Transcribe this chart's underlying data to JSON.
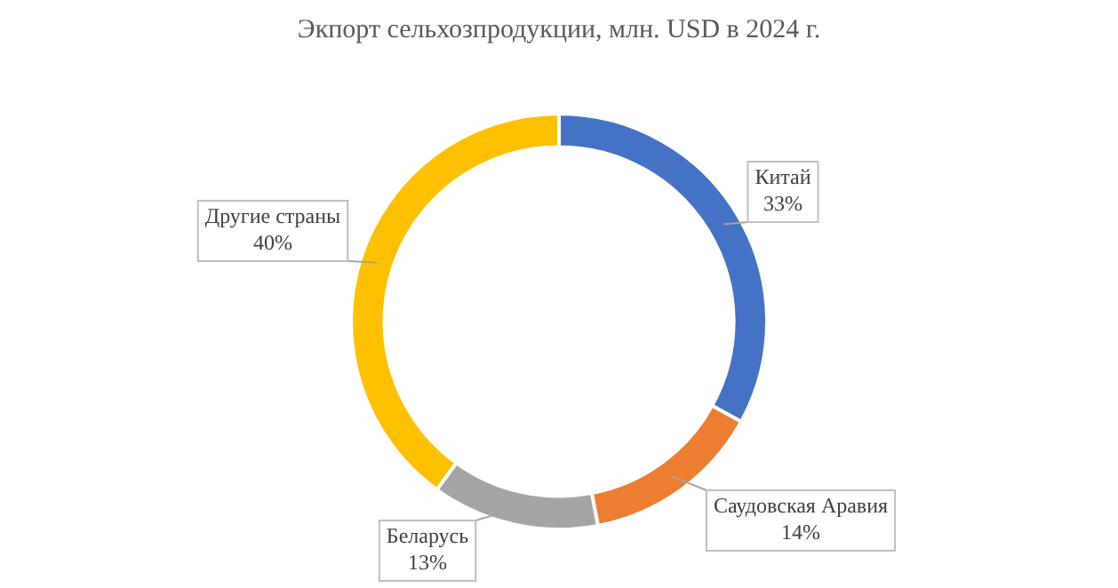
{
  "chart_data": {
    "type": "donut",
    "title": "Экпорт сельхозпродукции, млн. USD в 2024 г.",
    "categories": [
      "Китай",
      "Саудовская Аравия",
      "Беларусь",
      "Другие страны"
    ],
    "values": [
      33,
      14,
      13,
      40
    ],
    "value_labels": [
      "33%",
      "14%",
      "13%",
      "40%"
    ],
    "colors": [
      "#4472c4",
      "#ed7d31",
      "#a5a5a5",
      "#ffc000"
    ],
    "legend": false
  }
}
